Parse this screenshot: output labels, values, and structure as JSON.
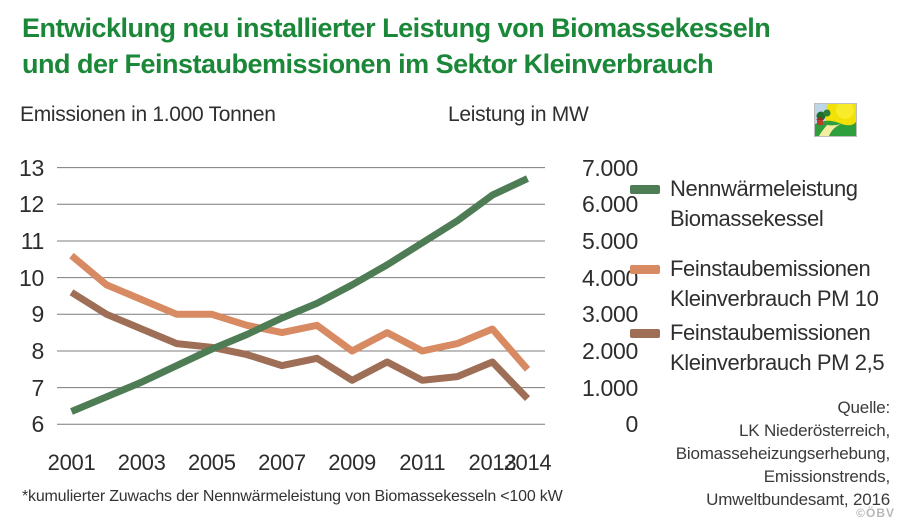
{
  "header": {
    "title_line1": "Entwicklung neu installierter Leistung von Biomassekesseln",
    "title_line2": "und der Feinstaubemissionen im Sektor Kleinverbrauch"
  },
  "axis_headers": {
    "left": "Emissionen in 1.000 Tonnen",
    "right": "Leistung in MW"
  },
  "legend": {
    "items": [
      {
        "line1": "Nennwärmeleistung",
        "line2": "Biomassekessel",
        "color": "#4e7c54"
      },
      {
        "line1": "Feinstaubemissionen",
        "line2": "Kleinverbrauch PM 10",
        "color": "#d88a62"
      },
      {
        "line1": "Feinstaubemissionen",
        "line2": "Kleinverbrauch PM 2,5",
        "color": "#9f6e56"
      }
    ]
  },
  "source": {
    "lines": [
      "Quelle:",
      "LK Niederösterreich,",
      "Biomasseheizungserhebung,",
      "Emissionstrends,",
      "Umweltbundesamt, 2016"
    ]
  },
  "footnote": "*kumulierter Zuwachs der Nennwärmeleistung von Biomassekesseln <100 kW",
  "watermark": "©ÖBV",
  "colors": {
    "title_green": "#1b8738",
    "grid": "#7c7c7c",
    "series_green": "#4e7c54",
    "series_salmon": "#d88a62",
    "series_brown": "#9f6e56"
  },
  "chart_data": {
    "type": "line",
    "title": "Entwicklung neu installierter Leistung von Biomassekesseln und der Feinstaubemissionen im Sektor Kleinverbrauch",
    "categories": [
      2001,
      2002,
      2003,
      2004,
      2005,
      2006,
      2007,
      2008,
      2009,
      2010,
      2011,
      2012,
      2013,
      2014
    ],
    "x_ticks": [
      {
        "label": "2001",
        "slot": 0
      },
      {
        "label": "2003",
        "slot": 2
      },
      {
        "label": "2005",
        "slot": 4
      },
      {
        "label": "2007",
        "slot": 6
      },
      {
        "label": "2009",
        "slot": 8
      },
      {
        "label": "2011",
        "slot": 10
      },
      {
        "label": "2013",
        "slot": 12
      },
      {
        "label": "2014",
        "slot": 13
      }
    ],
    "left_axis": {
      "label": "Emissionen in 1.000 Tonnen",
      "range": [
        6,
        13
      ],
      "ticks": [
        "13",
        "12",
        "11",
        "10",
        "9",
        "8",
        "7",
        "6"
      ],
      "tick_values": [
        13,
        12,
        11,
        10,
        9,
        8,
        7,
        6
      ]
    },
    "right_axis": {
      "label": "Leistung in MW",
      "range": [
        0,
        7000
      ],
      "ticks": [
        "7.000",
        "6.000",
        "5.000",
        "4.000",
        "3.000",
        "2.000",
        "1.000",
        "0"
      ],
      "tick_values": [
        7000,
        6000,
        5000,
        4000,
        3000,
        2000,
        1000,
        0
      ]
    },
    "grid": true,
    "legend_position": "right",
    "series": [
      {
        "name": "Nennwärmeleistung Biomassekessel",
        "axis": "right",
        "unit": "MW",
        "color": "#4e7c54",
        "values": [
          350,
          750,
          1150,
          1600,
          2050,
          2450,
          2900,
          3300,
          3800,
          4350,
          4950,
          5550,
          6250,
          6700
        ]
      },
      {
        "name": "Feinstaubemissionen Kleinverbrauch PM 10",
        "axis": "left",
        "unit": "1.000 Tonnen",
        "color": "#d88a62",
        "values": [
          10.6,
          9.8,
          9.4,
          9.0,
          9.0,
          8.7,
          8.5,
          8.7,
          8.0,
          8.5,
          8.0,
          8.2,
          8.6,
          7.5
        ]
      },
      {
        "name": "Feinstaubemissionen Kleinverbrauch PM 2,5",
        "axis": "left",
        "unit": "1.000 Tonnen",
        "color": "#9f6e56",
        "values": [
          9.6,
          9.0,
          8.6,
          8.2,
          8.1,
          7.9,
          7.6,
          7.8,
          7.2,
          7.7,
          7.2,
          7.3,
          7.7,
          6.7
        ]
      }
    ]
  }
}
